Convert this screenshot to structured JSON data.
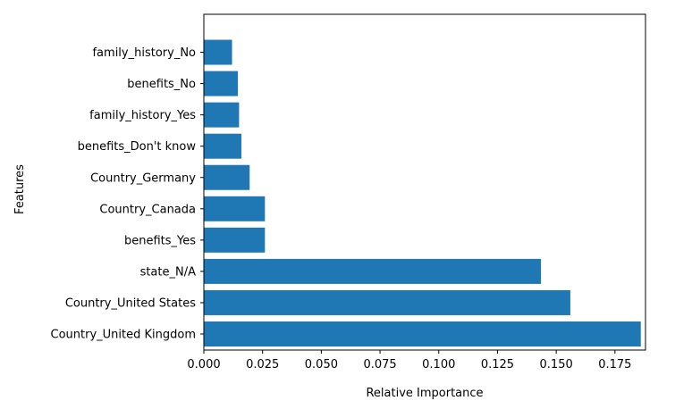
{
  "chart_data": {
    "type": "bar",
    "orientation": "horizontal",
    "categories": [
      "Country_United Kingdom",
      "Country_United States",
      "state_N/A",
      "benefits_Yes",
      "Country_Canada",
      "Country_Germany",
      "benefits_Don't know",
      "family_history_Yes",
      "benefits_No",
      "family_history_No"
    ],
    "values": [
      0.186,
      0.156,
      0.1435,
      0.026,
      0.026,
      0.0195,
      0.016,
      0.015,
      0.0145,
      0.012
    ],
    "xlabel": "Relative Importance",
    "ylabel": "Features",
    "xlim": [
      0.0,
      0.188
    ],
    "xticks": [
      "0.000",
      "0.025",
      "0.050",
      "0.075",
      "0.100",
      "0.125",
      "0.150",
      "0.175"
    ],
    "bar_color": "#1f77b4",
    "grid": false
  }
}
